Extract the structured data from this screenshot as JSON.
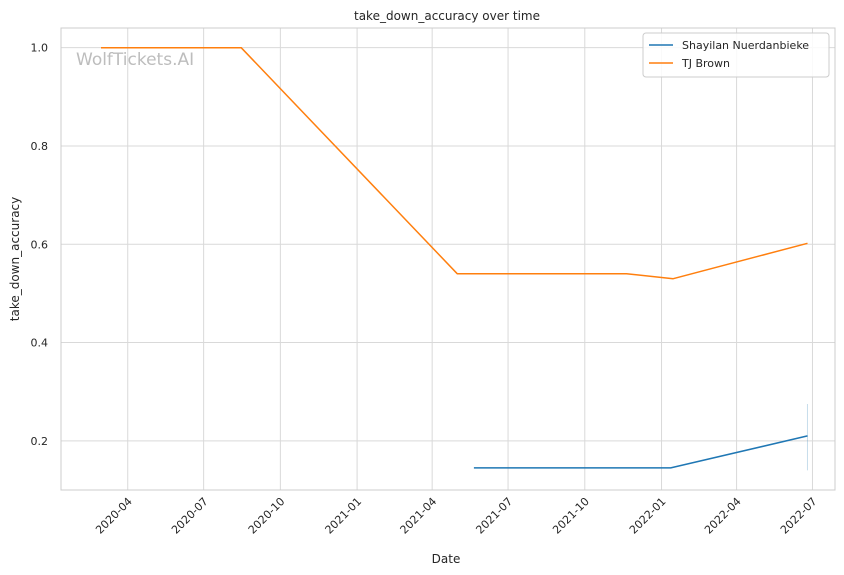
{
  "chart_data": {
    "type": "line",
    "title": "take_down_accuracy over time",
    "xlabel": "Date",
    "ylabel": "take_down_accuracy",
    "watermark": "WolfTickets.AI",
    "x_ticks": [
      "2020-04",
      "2020-07",
      "2020-10",
      "2021-01",
      "2021-04",
      "2021-07",
      "2021-10",
      "2022-01",
      "2022-04",
      "2022-07"
    ],
    "y_ticks": [
      "0.2",
      "0.4",
      "0.6",
      "0.8",
      "1.0"
    ],
    "xlim": [
      "2020-01-12",
      "2022-07-28"
    ],
    "ylim": [
      0.1,
      1.04
    ],
    "grid": true,
    "legend_position": "top-right",
    "series": [
      {
        "name": "Shayilan Nuerdanbieke",
        "color": "#1f77b4",
        "points": [
          {
            "x": "2021-05-21",
            "y": 0.145
          },
          {
            "x": "2022-01-12",
            "y": 0.145
          },
          {
            "x": "2022-06-25",
            "y": 0.21
          }
        ],
        "error_band": {
          "x": "2022-06-25",
          "low": 0.14,
          "high": 0.275
        }
      },
      {
        "name": "TJ Brown",
        "color": "#ff7f0e",
        "points": [
          {
            "x": "2020-02-29",
            "y": 1.0
          },
          {
            "x": "2020-08-15",
            "y": 1.0
          },
          {
            "x": "2021-05-01",
            "y": 0.54
          },
          {
            "x": "2021-11-20",
            "y": 0.54
          },
          {
            "x": "2022-01-15",
            "y": 0.53
          },
          {
            "x": "2022-06-25",
            "y": 0.602
          }
        ]
      }
    ]
  }
}
